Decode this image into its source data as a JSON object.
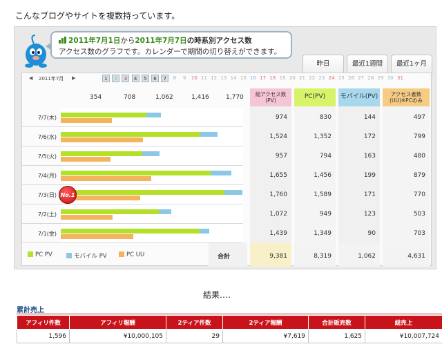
{
  "intro_text": "こんなブログやサイトを複数持っています。",
  "header": {
    "date_start": "2011年7月1日",
    "from": "から",
    "date_end": "2011年7月7日",
    "suffix": "の時系別アクセス数",
    "description": "アクセス数のグラフです。カレンダーで期間の切り替えができます。"
  },
  "tabs": [
    "昨日",
    "最近1週間",
    "最近1ヶ月"
  ],
  "calendar": {
    "month": "2011年7月",
    "prev_arrow": "◀",
    "next_arrow": "▶",
    "days": [
      "1",
      "2",
      "3",
      "4",
      "5",
      "6",
      "7",
      "8",
      "9",
      "10",
      "11",
      "12",
      "13",
      "14",
      "15",
      "16",
      "17",
      "18",
      "19",
      "20",
      "21",
      "22",
      "23",
      "24",
      "25",
      "26",
      "27",
      "28",
      "29",
      "30",
      "31"
    ]
  },
  "axis_ticks": [
    "354",
    "708",
    "1,062",
    "1,416",
    "1,770"
  ],
  "table_headers": {
    "total": "総アクセス数(PV)",
    "pc": "PC(PV)",
    "mobile": "モバイル(PV)",
    "uu": "アクセス者数(UU)※PCのみ"
  },
  "rows": [
    {
      "date": "7/7(木)",
      "total": "974",
      "pc": "830",
      "mobile": "144",
      "uu": "497"
    },
    {
      "date": "7/6(水)",
      "total": "1,524",
      "pc": "1,352",
      "mobile": "172",
      "uu": "799"
    },
    {
      "date": "7/5(火)",
      "total": "957",
      "pc": "794",
      "mobile": "163",
      "uu": "480"
    },
    {
      "date": "7/4(月)",
      "total": "1,655",
      "pc": "1,456",
      "mobile": "199",
      "uu": "879"
    },
    {
      "date": "7/3(日)",
      "total": "1,760",
      "pc": "1,589",
      "mobile": "171",
      "uu": "770"
    },
    {
      "date": "7/2(土)",
      "total": "1,072",
      "pc": "949",
      "mobile": "123",
      "uu": "503"
    },
    {
      "date": "7/1(金)",
      "total": "1,439",
      "pc": "1,349",
      "mobile": "90",
      "uu": "703"
    }
  ],
  "badge": "No.1",
  "legend": [
    "PC PV",
    "モバイル PV",
    "PC UU"
  ],
  "totals": {
    "label": "合計",
    "total": "9,381",
    "pc": "8,319",
    "mobile": "1,062",
    "uu": "4,631"
  },
  "chart_data": {
    "type": "bar",
    "categories": [
      "7/7(木)",
      "7/6(水)",
      "7/5(火)",
      "7/4(月)",
      "7/3(日)",
      "7/2(土)",
      "7/1(金)"
    ],
    "series": [
      {
        "name": "PC PV",
        "values": [
          830,
          1352,
          794,
          1456,
          1589,
          949,
          1349
        ]
      },
      {
        "name": "モバイル PV",
        "values": [
          144,
          172,
          163,
          199,
          171,
          123,
          90
        ]
      },
      {
        "name": "PC UU",
        "values": [
          497,
          799,
          480,
          879,
          770,
          503,
          703
        ]
      }
    ],
    "xlim": [
      0,
      1770
    ],
    "stacked_pc_mobile": true,
    "colors": {
      "pc": "#b4e02a",
      "mobile": "#8cc8e6",
      "uu": "#f4b45e"
    }
  },
  "result_label": "結果‥‥",
  "sales": {
    "title": "累計売上",
    "headers": [
      "アフィリ件数",
      "アフィリ報酬",
      "2ティア件数",
      "2ティア報酬",
      "合計販売数",
      "総売上"
    ],
    "values": [
      "1,596",
      "¥10,000,105",
      "29",
      "¥7,619",
      "1,625",
      "¥10,007,724"
    ]
  }
}
